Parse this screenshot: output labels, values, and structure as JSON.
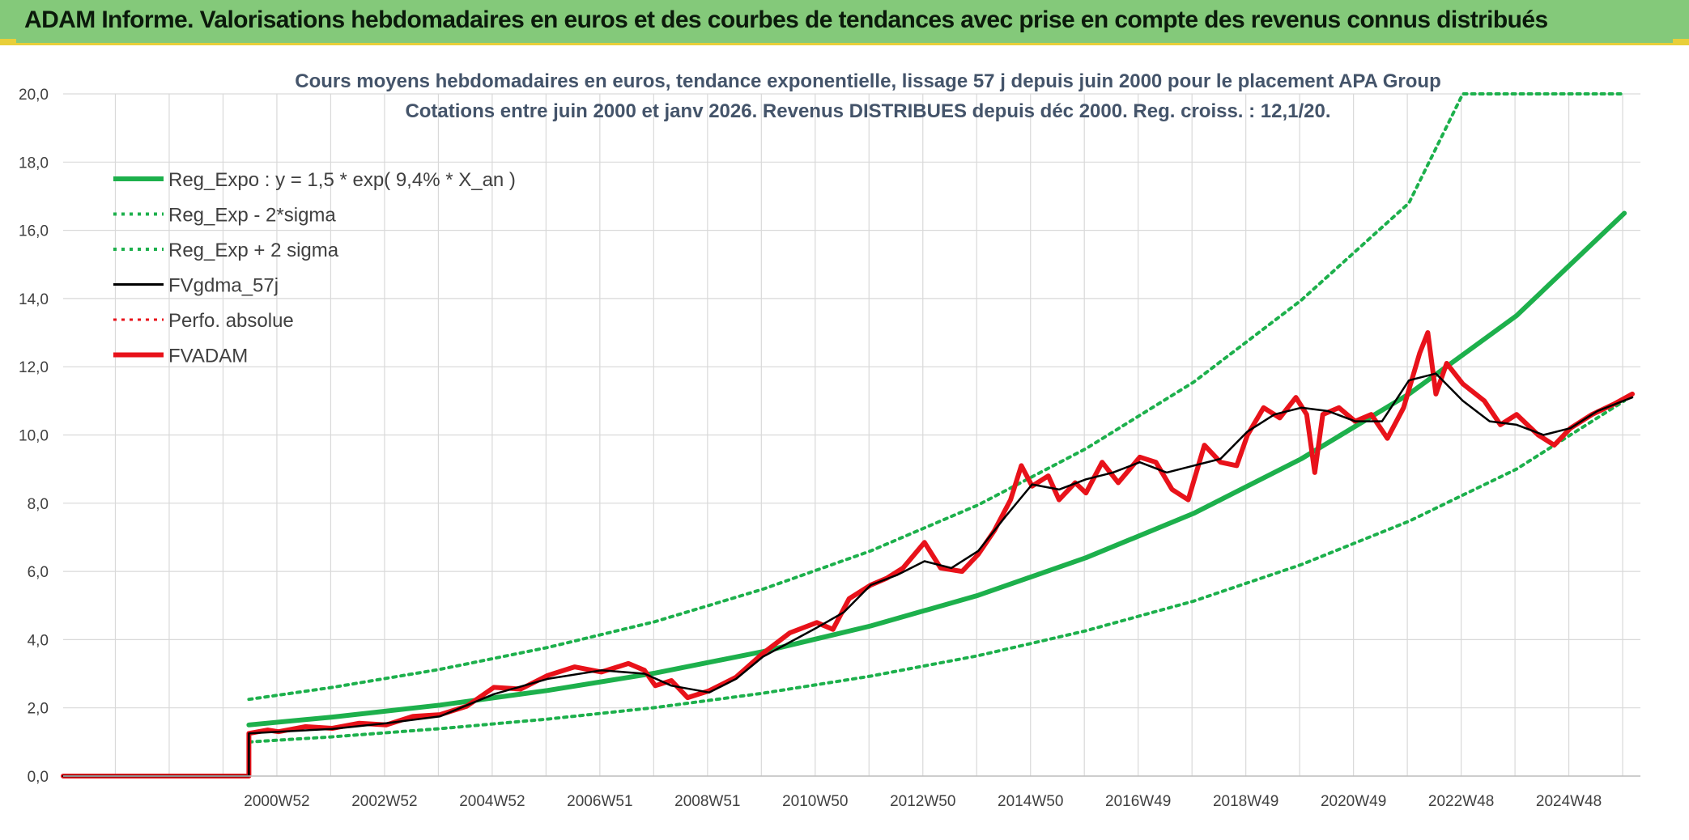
{
  "banner": {
    "title": "ADAM Informe. Valorisations hebdomadaires en euros et des courbes de tendances avec prise en compte des revenus connus distribués"
  },
  "colors": {
    "banner_bg": "#84c97a",
    "banner_accent": "#e8cf3a",
    "reg_green": "#1db04c",
    "fva_red": "#e8121a",
    "fvg_black": "#000000",
    "grid": "#d9d9d9"
  },
  "chart_data": {
    "type": "line",
    "title_lines": [
      "Cours moyens hebdomadaires en euros, tendance exponentielle, lissage 57 j depuis juin 2000 pour le placement APA Group",
      "Cotations entre juin 2000 et janv 2026. Revenus DISTRIBUES depuis déc 2000. Reg. croiss. : 12,1/20."
    ],
    "ylim": [
      0,
      20
    ],
    "y_ticks": [
      "0,0",
      "2,0",
      "4,0",
      "6,0",
      "8,0",
      "10,0",
      "12,0",
      "14,0",
      "16,0",
      "18,0",
      "20,0"
    ],
    "x_range": [
      1997.0,
      2026.3
    ],
    "x_ticks": [
      {
        "x": 2000.97,
        "label": "2000W52"
      },
      {
        "x": 2002.97,
        "label": "2002W52"
      },
      {
        "x": 2004.97,
        "label": "2004W52"
      },
      {
        "x": 2006.97,
        "label": "2006W51"
      },
      {
        "x": 2008.97,
        "label": "2008W51"
      },
      {
        "x": 2010.97,
        "label": "2010W50"
      },
      {
        "x": 2012.97,
        "label": "2012W50"
      },
      {
        "x": 2014.97,
        "label": "2014W50"
      },
      {
        "x": 2016.97,
        "label": "2016W49"
      },
      {
        "x": 2018.97,
        "label": "2018W49"
      },
      {
        "x": 2020.97,
        "label": "2020W49"
      },
      {
        "x": 2022.97,
        "label": "2022W48"
      },
      {
        "x": 2024.97,
        "label": "2024W48"
      }
    ],
    "grid": true,
    "legend_position": "top-left",
    "series": [
      {
        "name": "Reg_Expo : y = 1,5 * exp( 9,4% *  X_an )",
        "style": "solid-thick",
        "color": "#1db04c",
        "points": [
          [
            2000.45,
            1.5
          ],
          [
            2002,
            1.73
          ],
          [
            2004,
            2.08
          ],
          [
            2006,
            2.51
          ],
          [
            2008,
            3.02
          ],
          [
            2010,
            3.65
          ],
          [
            2012,
            4.4
          ],
          [
            2014,
            5.3
          ],
          [
            2016,
            6.4
          ],
          [
            2018,
            7.7
          ],
          [
            2020,
            9.3
          ],
          [
            2022,
            11.2
          ],
          [
            2024,
            13.5
          ],
          [
            2026,
            16.5
          ]
        ]
      },
      {
        "name": "Reg_Exp - 2*sigma",
        "style": "dotted",
        "color": "#1db04c",
        "points": [
          [
            2000.45,
            1.0
          ],
          [
            2002,
            1.15
          ],
          [
            2004,
            1.39
          ],
          [
            2006,
            1.67
          ],
          [
            2008,
            2.01
          ],
          [
            2010,
            2.43
          ],
          [
            2012,
            2.93
          ],
          [
            2014,
            3.53
          ],
          [
            2016,
            4.26
          ],
          [
            2018,
            5.13
          ],
          [
            2020,
            6.2
          ],
          [
            2022,
            7.47
          ],
          [
            2024,
            9.0
          ],
          [
            2026,
            11.0
          ]
        ]
      },
      {
        "name": "Reg_Exp + 2 sigma",
        "style": "dotted",
        "color": "#1db04c",
        "points": [
          [
            2000.45,
            2.25
          ],
          [
            2002,
            2.6
          ],
          [
            2004,
            3.13
          ],
          [
            2006,
            3.77
          ],
          [
            2008,
            4.53
          ],
          [
            2010,
            5.48
          ],
          [
            2012,
            6.6
          ],
          [
            2014,
            7.95
          ],
          [
            2016,
            9.6
          ],
          [
            2018,
            11.55
          ],
          [
            2020,
            13.95
          ],
          [
            2022,
            16.8
          ],
          [
            2023.0,
            20.0
          ],
          [
            2026,
            20.0
          ]
        ]
      },
      {
        "name": "FVgdma_57j",
        "style": "solid",
        "color": "#000000",
        "points": [
          [
            1997,
            0
          ],
          [
            2000.45,
            0
          ],
          [
            2000.45,
            1.25
          ],
          [
            2001,
            1.3
          ],
          [
            2002,
            1.38
          ],
          [
            2003,
            1.55
          ],
          [
            2004,
            1.75
          ],
          [
            2005,
            2.4
          ],
          [
            2006,
            2.85
          ],
          [
            2007,
            3.1
          ],
          [
            2007.8,
            3.0
          ],
          [
            2008.3,
            2.65
          ],
          [
            2009,
            2.45
          ],
          [
            2009.5,
            2.85
          ],
          [
            2010,
            3.5
          ],
          [
            2011,
            4.35
          ],
          [
            2011.5,
            4.8
          ],
          [
            2012,
            5.6
          ],
          [
            2012.5,
            5.9
          ],
          [
            2013,
            6.3
          ],
          [
            2013.5,
            6.1
          ],
          [
            2014,
            6.6
          ],
          [
            2014.5,
            7.6
          ],
          [
            2015,
            8.55
          ],
          [
            2015.5,
            8.4
          ],
          [
            2016,
            8.7
          ],
          [
            2016.5,
            8.9
          ],
          [
            2017,
            9.2
          ],
          [
            2017.5,
            8.9
          ],
          [
            2018,
            9.1
          ],
          [
            2018.5,
            9.3
          ],
          [
            2019,
            10.1
          ],
          [
            2019.5,
            10.6
          ],
          [
            2020,
            10.8
          ],
          [
            2020.5,
            10.7
          ],
          [
            2021,
            10.4
          ],
          [
            2021.5,
            10.4
          ],
          [
            2022,
            11.6
          ],
          [
            2022.5,
            11.8
          ],
          [
            2023,
            11.0
          ],
          [
            2023.5,
            10.4
          ],
          [
            2024,
            10.3
          ],
          [
            2024.5,
            10.0
          ],
          [
            2025,
            10.2
          ],
          [
            2025.5,
            10.7
          ],
          [
            2026.15,
            11.1
          ]
        ]
      },
      {
        "name": "Perfo. absolue",
        "style": "dotted",
        "color": "#e8121a",
        "points": []
      },
      {
        "name": "FVADAM",
        "style": "solid-thick",
        "color": "#e8121a",
        "points": [
          [
            1997,
            0
          ],
          [
            2000.45,
            0
          ],
          [
            2000.45,
            1.25
          ],
          [
            2000.8,
            1.35
          ],
          [
            2001,
            1.3
          ],
          [
            2001.5,
            1.45
          ],
          [
            2002,
            1.4
          ],
          [
            2002.5,
            1.55
          ],
          [
            2003,
            1.5
          ],
          [
            2003.5,
            1.75
          ],
          [
            2004,
            1.8
          ],
          [
            2004.5,
            2.05
          ],
          [
            2005,
            2.6
          ],
          [
            2005.5,
            2.55
          ],
          [
            2006,
            2.95
          ],
          [
            2006.5,
            3.2
          ],
          [
            2007,
            3.05
          ],
          [
            2007.5,
            3.3
          ],
          [
            2007.8,
            3.1
          ],
          [
            2008,
            2.65
          ],
          [
            2008.3,
            2.8
          ],
          [
            2008.6,
            2.3
          ],
          [
            2009,
            2.5
          ],
          [
            2009.5,
            2.9
          ],
          [
            2010,
            3.6
          ],
          [
            2010.5,
            4.2
          ],
          [
            2011,
            4.5
          ],
          [
            2011.3,
            4.3
          ],
          [
            2011.6,
            5.2
          ],
          [
            2012,
            5.6
          ],
          [
            2012.3,
            5.8
          ],
          [
            2012.6,
            6.1
          ],
          [
            2013,
            6.85
          ],
          [
            2013.3,
            6.1
          ],
          [
            2013.7,
            6.0
          ],
          [
            2014,
            6.5
          ],
          [
            2014.3,
            7.2
          ],
          [
            2014.6,
            8.1
          ],
          [
            2014.8,
            9.1
          ],
          [
            2015,
            8.5
          ],
          [
            2015.3,
            8.8
          ],
          [
            2015.5,
            8.1
          ],
          [
            2015.8,
            8.6
          ],
          [
            2016,
            8.3
          ],
          [
            2016.3,
            9.2
          ],
          [
            2016.6,
            8.6
          ],
          [
            2017,
            9.35
          ],
          [
            2017.3,
            9.2
          ],
          [
            2017.6,
            8.4
          ],
          [
            2017.9,
            8.1
          ],
          [
            2018.2,
            9.7
          ],
          [
            2018.5,
            9.2
          ],
          [
            2018.8,
            9.1
          ],
          [
            2019,
            10.0
          ],
          [
            2019.3,
            10.8
          ],
          [
            2019.6,
            10.5
          ],
          [
            2019.9,
            11.1
          ],
          [
            2020.1,
            10.6
          ],
          [
            2020.25,
            8.9
          ],
          [
            2020.4,
            10.6
          ],
          [
            2020.7,
            10.8
          ],
          [
            2021,
            10.4
          ],
          [
            2021.3,
            10.6
          ],
          [
            2021.6,
            9.9
          ],
          [
            2021.9,
            10.8
          ],
          [
            2022.2,
            12.4
          ],
          [
            2022.35,
            13.0
          ],
          [
            2022.5,
            11.2
          ],
          [
            2022.7,
            12.1
          ],
          [
            2023,
            11.5
          ],
          [
            2023.4,
            11.0
          ],
          [
            2023.7,
            10.3
          ],
          [
            2024,
            10.6
          ],
          [
            2024.4,
            10.0
          ],
          [
            2024.7,
            9.7
          ],
          [
            2025,
            10.2
          ],
          [
            2025.4,
            10.6
          ],
          [
            2025.8,
            10.9
          ],
          [
            2026.15,
            11.2
          ]
        ]
      }
    ]
  }
}
